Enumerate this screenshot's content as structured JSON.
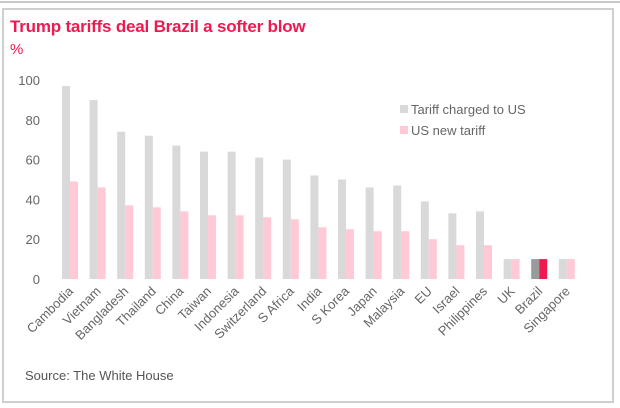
{
  "chart_data": {
    "type": "bar",
    "title": "Trump tariffs deal Brazil a softer blow",
    "ylabel": "%",
    "xlabel": "",
    "ylim": [
      0,
      100
    ],
    "yticks": [
      0,
      20,
      40,
      60,
      80,
      100
    ],
    "grid": false,
    "legend_position": "top-right",
    "categories": [
      "Cambodia",
      "Vietnam",
      "Bangladesh",
      "Thailand",
      "China",
      "Taiwan",
      "Indonesia",
      "Switzerland",
      "S Africa",
      "India",
      "S Korea",
      "Japan",
      "Malaysia",
      "EU",
      "Israel",
      "Philippines",
      "UK",
      "Brazil",
      "Singapore"
    ],
    "series": [
      {
        "name": "Tariff charged to US",
        "color": "#d9d9d9",
        "highlight_color": "#9a9a9a",
        "values": [
          97,
          90,
          74,
          72,
          67,
          64,
          64,
          61,
          60,
          52,
          50,
          46,
          47,
          39,
          33,
          34,
          10,
          10,
          10
        ]
      },
      {
        "name": "US new tariff",
        "color": "#ffc9d6",
        "highlight_color": "#f0194f",
        "values": [
          49,
          46,
          37,
          36,
          34,
          32,
          32,
          31,
          30,
          26,
          25,
          24,
          24,
          20,
          17,
          17,
          10,
          10,
          10
        ]
      }
    ],
    "highlight_category": "Brazil",
    "source": "Source: The White House"
  },
  "header": {
    "title": "Trump tariffs deal Brazil a softer blow",
    "unit": "%"
  },
  "footer": {
    "source": "Source: The White House"
  }
}
